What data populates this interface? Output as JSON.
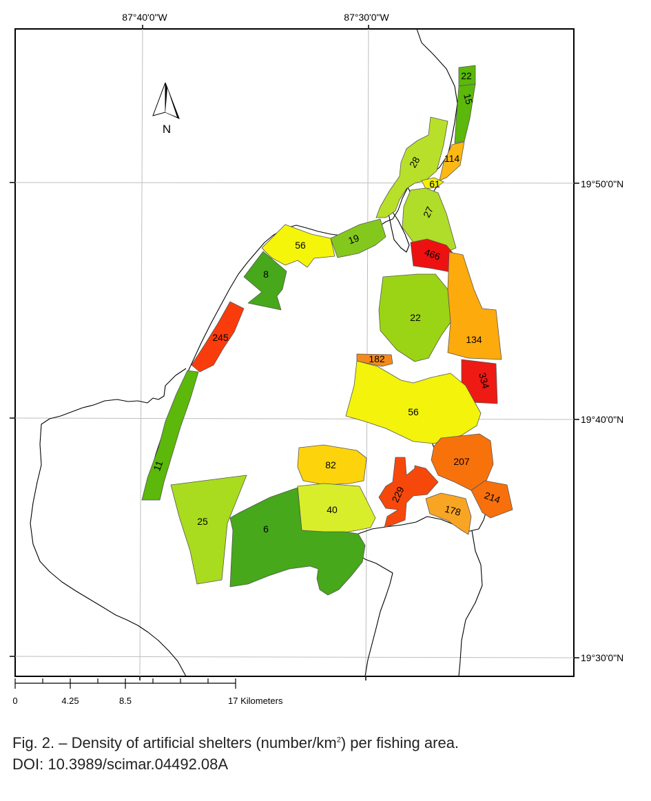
{
  "map": {
    "coordinate_labels": {
      "lon_west": "87°40'0\"W",
      "lon_east": "87°30'0\"W",
      "lat_north": "19°50'0\"N",
      "lat_mid": "19°40'0\"N",
      "lat_south": "19°30'0\"N"
    },
    "north_arrow_label": "N",
    "scale_bar": {
      "ticks": [
        "0",
        "4.25",
        "8.5",
        "17 Kilometers"
      ]
    },
    "areas": [
      {
        "id": "a22n",
        "label": "22",
        "density": 22,
        "color": "#5cb80a"
      },
      {
        "id": "a15",
        "label": "15",
        "density": 15,
        "color": "#5cb80a"
      },
      {
        "id": "a28",
        "label": "28",
        "density": 28,
        "color": "#b8e02a"
      },
      {
        "id": "a114",
        "label": "114",
        "density": 114,
        "color": "#fdb913"
      },
      {
        "id": "a61",
        "label": "61",
        "density": 61,
        "color": "#f0f000"
      },
      {
        "id": "a27",
        "label": "27",
        "density": 27,
        "color": "#b0dc2a"
      },
      {
        "id": "a56n",
        "label": "56",
        "density": 56,
        "color": "#f5f50a"
      },
      {
        "id": "a19",
        "label": "19",
        "density": 19,
        "color": "#84c81e"
      },
      {
        "id": "a466",
        "label": "466",
        "density": 466,
        "color": "#ee1111"
      },
      {
        "id": "a8",
        "label": "8",
        "density": 8,
        "color": "#46a81a"
      },
      {
        "id": "a22c",
        "label": "22",
        "density": 22,
        "color": "#9bd414"
      },
      {
        "id": "a134",
        "label": "134",
        "density": 134,
        "color": "#fdaa0c"
      },
      {
        "id": "a245",
        "label": "245",
        "density": 245,
        "color": "#fa3c0c"
      },
      {
        "id": "a182",
        "label": "182",
        "density": 182,
        "color": "#f58a1b"
      },
      {
        "id": "a334",
        "label": "334",
        "density": 334,
        "color": "#ee1a14"
      },
      {
        "id": "a56c",
        "label": "56",
        "density": 56,
        "color": "#f3f30b"
      },
      {
        "id": "a207",
        "label": "207",
        "density": 207,
        "color": "#f8720c"
      },
      {
        "id": "a11",
        "label": "11",
        "density": 11,
        "color": "#5cb80a"
      },
      {
        "id": "a82",
        "label": "82",
        "density": 82,
        "color": "#fdd40c"
      },
      {
        "id": "a229",
        "label": "229",
        "density": 229,
        "color": "#f7480c"
      },
      {
        "id": "a214",
        "label": "214",
        "density": 214,
        "color": "#f8700c"
      },
      {
        "id": "a178",
        "label": "178",
        "density": 178,
        "color": "#f9a524"
      },
      {
        "id": "a25",
        "label": "25",
        "density": 25,
        "color": "#a9dc1e"
      },
      {
        "id": "a40",
        "label": "40",
        "density": 40,
        "color": "#d9ee2a"
      },
      {
        "id": "a6",
        "label": "6",
        "density": 6,
        "color": "#46a81a"
      }
    ]
  },
  "caption": {
    "line1_before_sup": "Fig. 2. – Density of artificial shelters (number/km",
    "line1_sup": "2",
    "line1_after_sup": ") per fishing area.",
    "line2": "DOI: 10.3989/scimar.04492.08A"
  }
}
